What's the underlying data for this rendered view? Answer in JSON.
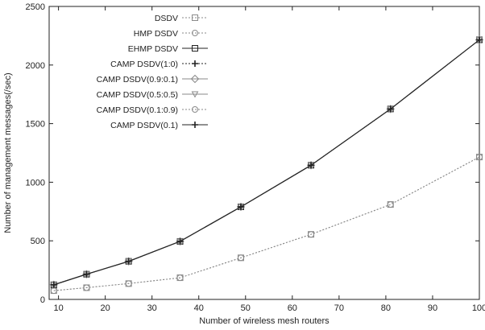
{
  "chart_data": {
    "type": "line",
    "xlabel": "Number of wireless mesh routers",
    "ylabel": "Number of management messages(/sec)",
    "xlim": [
      8,
      100
    ],
    "ylim": [
      0,
      2500
    ],
    "xticks": [
      10,
      20,
      30,
      40,
      50,
      60,
      70,
      80,
      90,
      100
    ],
    "yticks": [
      0,
      500,
      1000,
      1500,
      2000,
      2500
    ],
    "grid": false,
    "legend_position": "top-left",
    "x": [
      9,
      16,
      25,
      36,
      49,
      64,
      81,
      100
    ],
    "series": [
      {
        "name": "DSDV",
        "marker": "square",
        "dash": "dotted",
        "color": "#8a8a8a",
        "values": [
          75,
          100,
          135,
          185,
          355,
          555,
          810,
          1215
        ]
      },
      {
        "name": "HMP DSDV",
        "marker": "circle",
        "dash": "dotted",
        "color": "#8a8a8a",
        "values": [
          75,
          100,
          135,
          185,
          355,
          555,
          810,
          1215
        ]
      },
      {
        "name": "EHMP DSDV",
        "marker": "square",
        "dash": "solid",
        "color": "#222222",
        "values": [
          125,
          215,
          325,
          495,
          790,
          1145,
          1625,
          2215
        ]
      },
      {
        "name": "CAMP DSDV(1:0)",
        "marker": "plus",
        "dash": "dotted",
        "color": "#222222",
        "values": [
          125,
          215,
          325,
          495,
          790,
          1145,
          1625,
          2215
        ]
      },
      {
        "name": "CAMP DSDV(0.9:0.1)",
        "marker": "diamond",
        "dash": "solid",
        "color": "#8a8a8a",
        "values": [
          125,
          215,
          325,
          495,
          790,
          1145,
          1625,
          2215
        ]
      },
      {
        "name": "CAMP DSDV(0.5:0.5)",
        "marker": "triangle-down",
        "dash": "solid",
        "color": "#8a8a8a",
        "values": [
          125,
          215,
          325,
          495,
          790,
          1145,
          1625,
          2215
        ]
      },
      {
        "name": "CAMP DSDV(0.1:0.9)",
        "marker": "circle",
        "dash": "dotted",
        "color": "#8a8a8a",
        "values": [
          125,
          215,
          325,
          495,
          790,
          1145,
          1625,
          2215
        ]
      },
      {
        "name": "CAMP DSDV(0.1)",
        "marker": "plus",
        "dash": "solid",
        "color": "#222222",
        "values": [
          125,
          215,
          325,
          495,
          790,
          1145,
          1625,
          2215
        ]
      }
    ]
  }
}
